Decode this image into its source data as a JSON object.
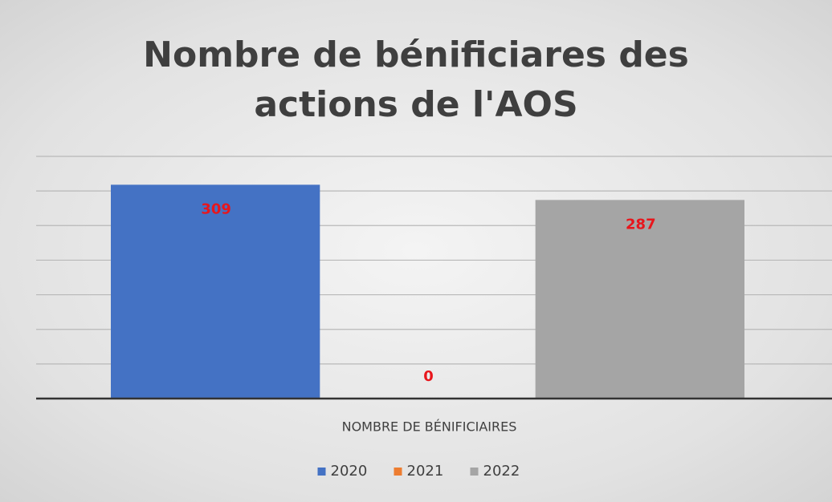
{
  "chart_data": {
    "type": "bar",
    "title": "Nombre de béniﬁciares des actions de l'AOS",
    "categories": [
      "NOMBRE DE BÉNIFICIAIRES"
    ],
    "series": [
      {
        "name": "2020",
        "color": "#4472c4",
        "values": [
          309
        ]
      },
      {
        "name": "2021",
        "color": "#ed7d31",
        "values": [
          0
        ]
      },
      {
        "name": "2022",
        "color": "#a5a5a5",
        "values": [
          287
        ]
      }
    ],
    "ylim": [
      0,
      350
    ],
    "yticks": [
      0,
      50,
      100,
      150,
      200,
      250,
      300,
      350
    ],
    "grid": true,
    "legend": "bottom",
    "label_color": "#e8161c"
  }
}
